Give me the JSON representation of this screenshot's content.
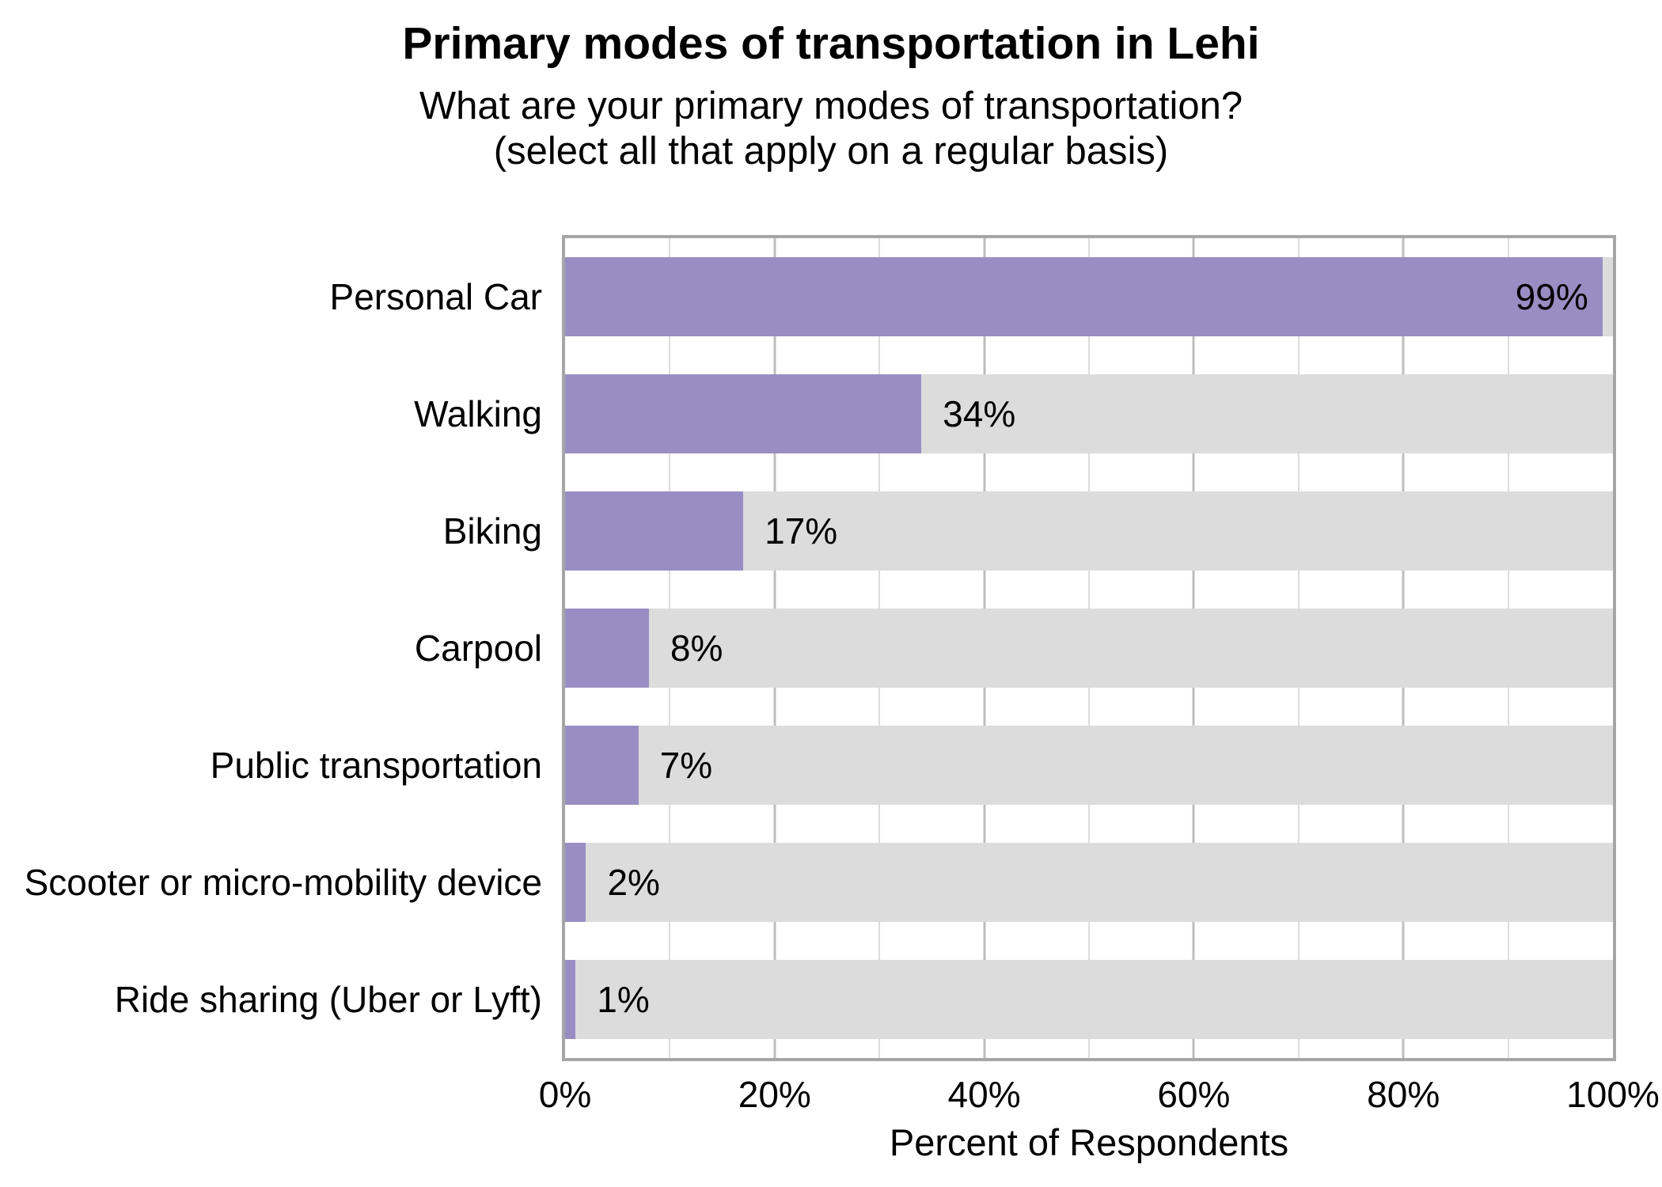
{
  "header": {
    "title": "Primary modes of transportation in Lehi",
    "subtitle_line1": "What are your primary modes of transportation?",
    "subtitle_line2": "(select all that apply on a regular basis)"
  },
  "chart_data": {
    "type": "bar",
    "orientation": "horizontal",
    "title": "Primary modes of transportation in Lehi",
    "subtitle": "What are your primary modes of transportation? (select all that apply on a regular basis)",
    "categories": [
      "Personal Car",
      "Walking",
      "Biking",
      "Carpool",
      "Public transportation",
      "Scooter or micro-mobility device",
      "Ride sharing (Uber or Lyft)"
    ],
    "values": [
      99,
      34,
      17,
      8,
      7,
      2,
      1
    ],
    "value_labels": [
      "99%",
      "34%",
      "17%",
      "8%",
      "7%",
      "2%",
      "1%"
    ],
    "xlabel": "Percent of Respondents",
    "ylabel": "",
    "xlim": [
      0,
      100
    ],
    "x_tick_values": [
      0,
      20,
      40,
      60,
      80,
      100
    ],
    "x_tick_labels": [
      "0%",
      "20%",
      "40%",
      "60%",
      "80%",
      "100%"
    ],
    "minor_grid_step": 10,
    "major_grid_step": 20,
    "grid": true,
    "legend_position": "none",
    "label_inside_threshold": 90,
    "colors": {
      "bar": "#998ec3",
      "track": "#dcdcdc",
      "panel_border": "#a6a6a6",
      "grid_major": "#bdbdbd",
      "grid_minor": "#dcdcdc",
      "text": "#000000"
    }
  }
}
